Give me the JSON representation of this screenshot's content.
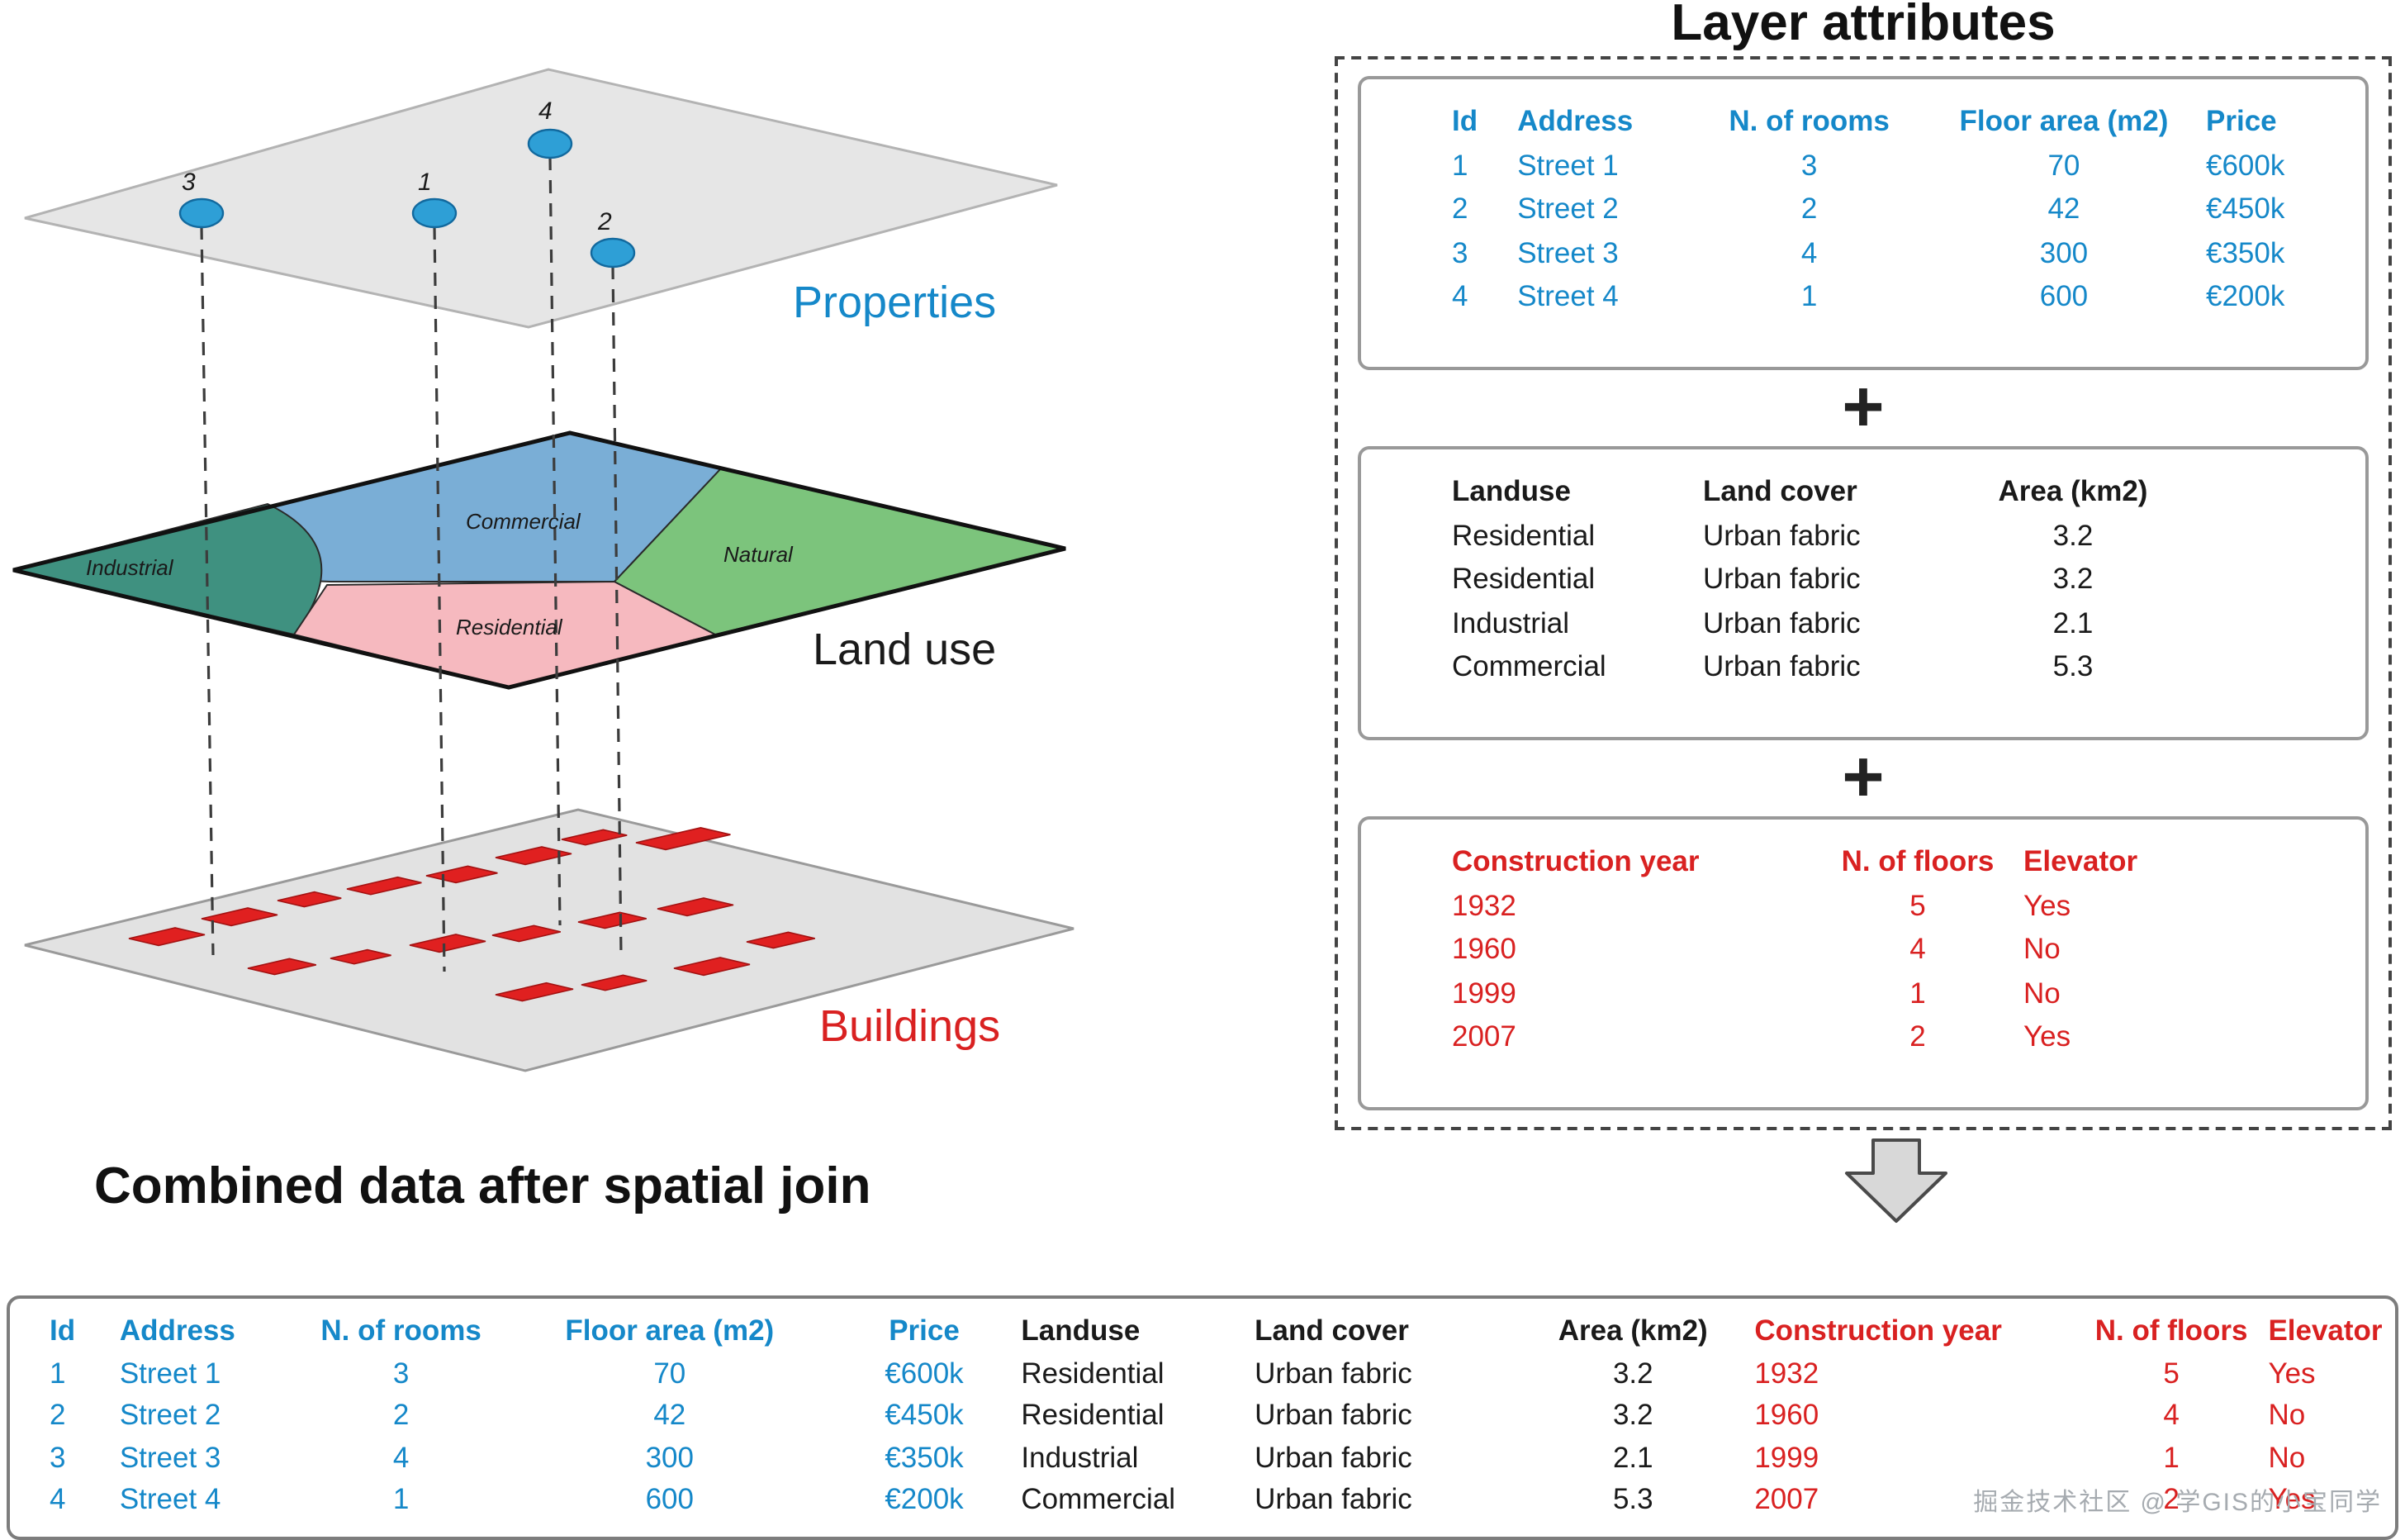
{
  "colors": {
    "blue": "#1588c9",
    "black": "#1a1a1a",
    "red": "#d92121"
  },
  "diagram": {
    "properties_label": "Properties",
    "landuse_label": "Land use",
    "buildings_label": "Buildings",
    "point_labels": [
      "3",
      "1",
      "4",
      "2"
    ],
    "region_labels": [
      "Industrial",
      "Commercial",
      "Natural",
      "Residential"
    ]
  },
  "layer_attributes": {
    "title": "Layer attributes",
    "plus": "+",
    "properties_table": {
      "color": "blue",
      "headers": [
        "Id",
        "Address",
        "N. of rooms",
        "Floor area (m2)",
        "Price"
      ],
      "rows": [
        [
          "1",
          "Street 1",
          "3",
          "70",
          "€600k"
        ],
        [
          "2",
          "Street 2",
          "2",
          "42",
          "€450k"
        ],
        [
          "3",
          "Street 3",
          "4",
          "300",
          "€350k"
        ],
        [
          "4",
          "Street 4",
          "1",
          "600",
          "€200k"
        ]
      ]
    },
    "landuse_table": {
      "color": "black",
      "headers": [
        "Landuse",
        "Land cover",
        "Area (km2)"
      ],
      "rows": [
        [
          "Residential",
          "Urban fabric",
          "3.2"
        ],
        [
          "Residential",
          "Urban fabric",
          "3.2"
        ],
        [
          "Industrial",
          "Urban fabric",
          "2.1"
        ],
        [
          "Commercial",
          "Urban fabric",
          "5.3"
        ]
      ]
    },
    "buildings_table": {
      "color": "red",
      "headers": [
        "Construction year",
        "N. of floors",
        "Elevator"
      ],
      "rows": [
        [
          "1932",
          "5",
          "Yes"
        ],
        [
          "1960",
          "4",
          "No"
        ],
        [
          "1999",
          "1",
          "No"
        ],
        [
          "2007",
          "2",
          "Yes"
        ]
      ]
    }
  },
  "combined": {
    "title": "Combined data after spatial join",
    "table": {
      "col_colors": [
        "blue",
        "blue",
        "blue",
        "blue",
        "blue",
        "black",
        "black",
        "black",
        "red",
        "red",
        "red"
      ],
      "headers": [
        "Id",
        "Address",
        "N. of rooms",
        "Floor area (m2)",
        "Price",
        "Landuse",
        "Land cover",
        "Area (km2)",
        "Construction year",
        "N. of floors",
        "Elevator"
      ],
      "rows": [
        [
          "1",
          "Street 1",
          "3",
          "70",
          "€600k",
          "Residential",
          "Urban fabric",
          "3.2",
          "1932",
          "5",
          "Yes"
        ],
        [
          "2",
          "Street 2",
          "2",
          "42",
          "€450k",
          "Residential",
          "Urban fabric",
          "3.2",
          "1960",
          "4",
          "No"
        ],
        [
          "3",
          "Street 3",
          "4",
          "300",
          "€350k",
          "Industrial",
          "Urban fabric",
          "2.1",
          "1999",
          "1",
          "No"
        ],
        [
          "4",
          "Street 4",
          "1",
          "600",
          "€200k",
          "Commercial",
          "Urban fabric",
          "5.3",
          "2007",
          "2",
          "Yes"
        ]
      ]
    }
  },
  "watermark": "掘金技术社区 @ 学GIS的小宝同学"
}
